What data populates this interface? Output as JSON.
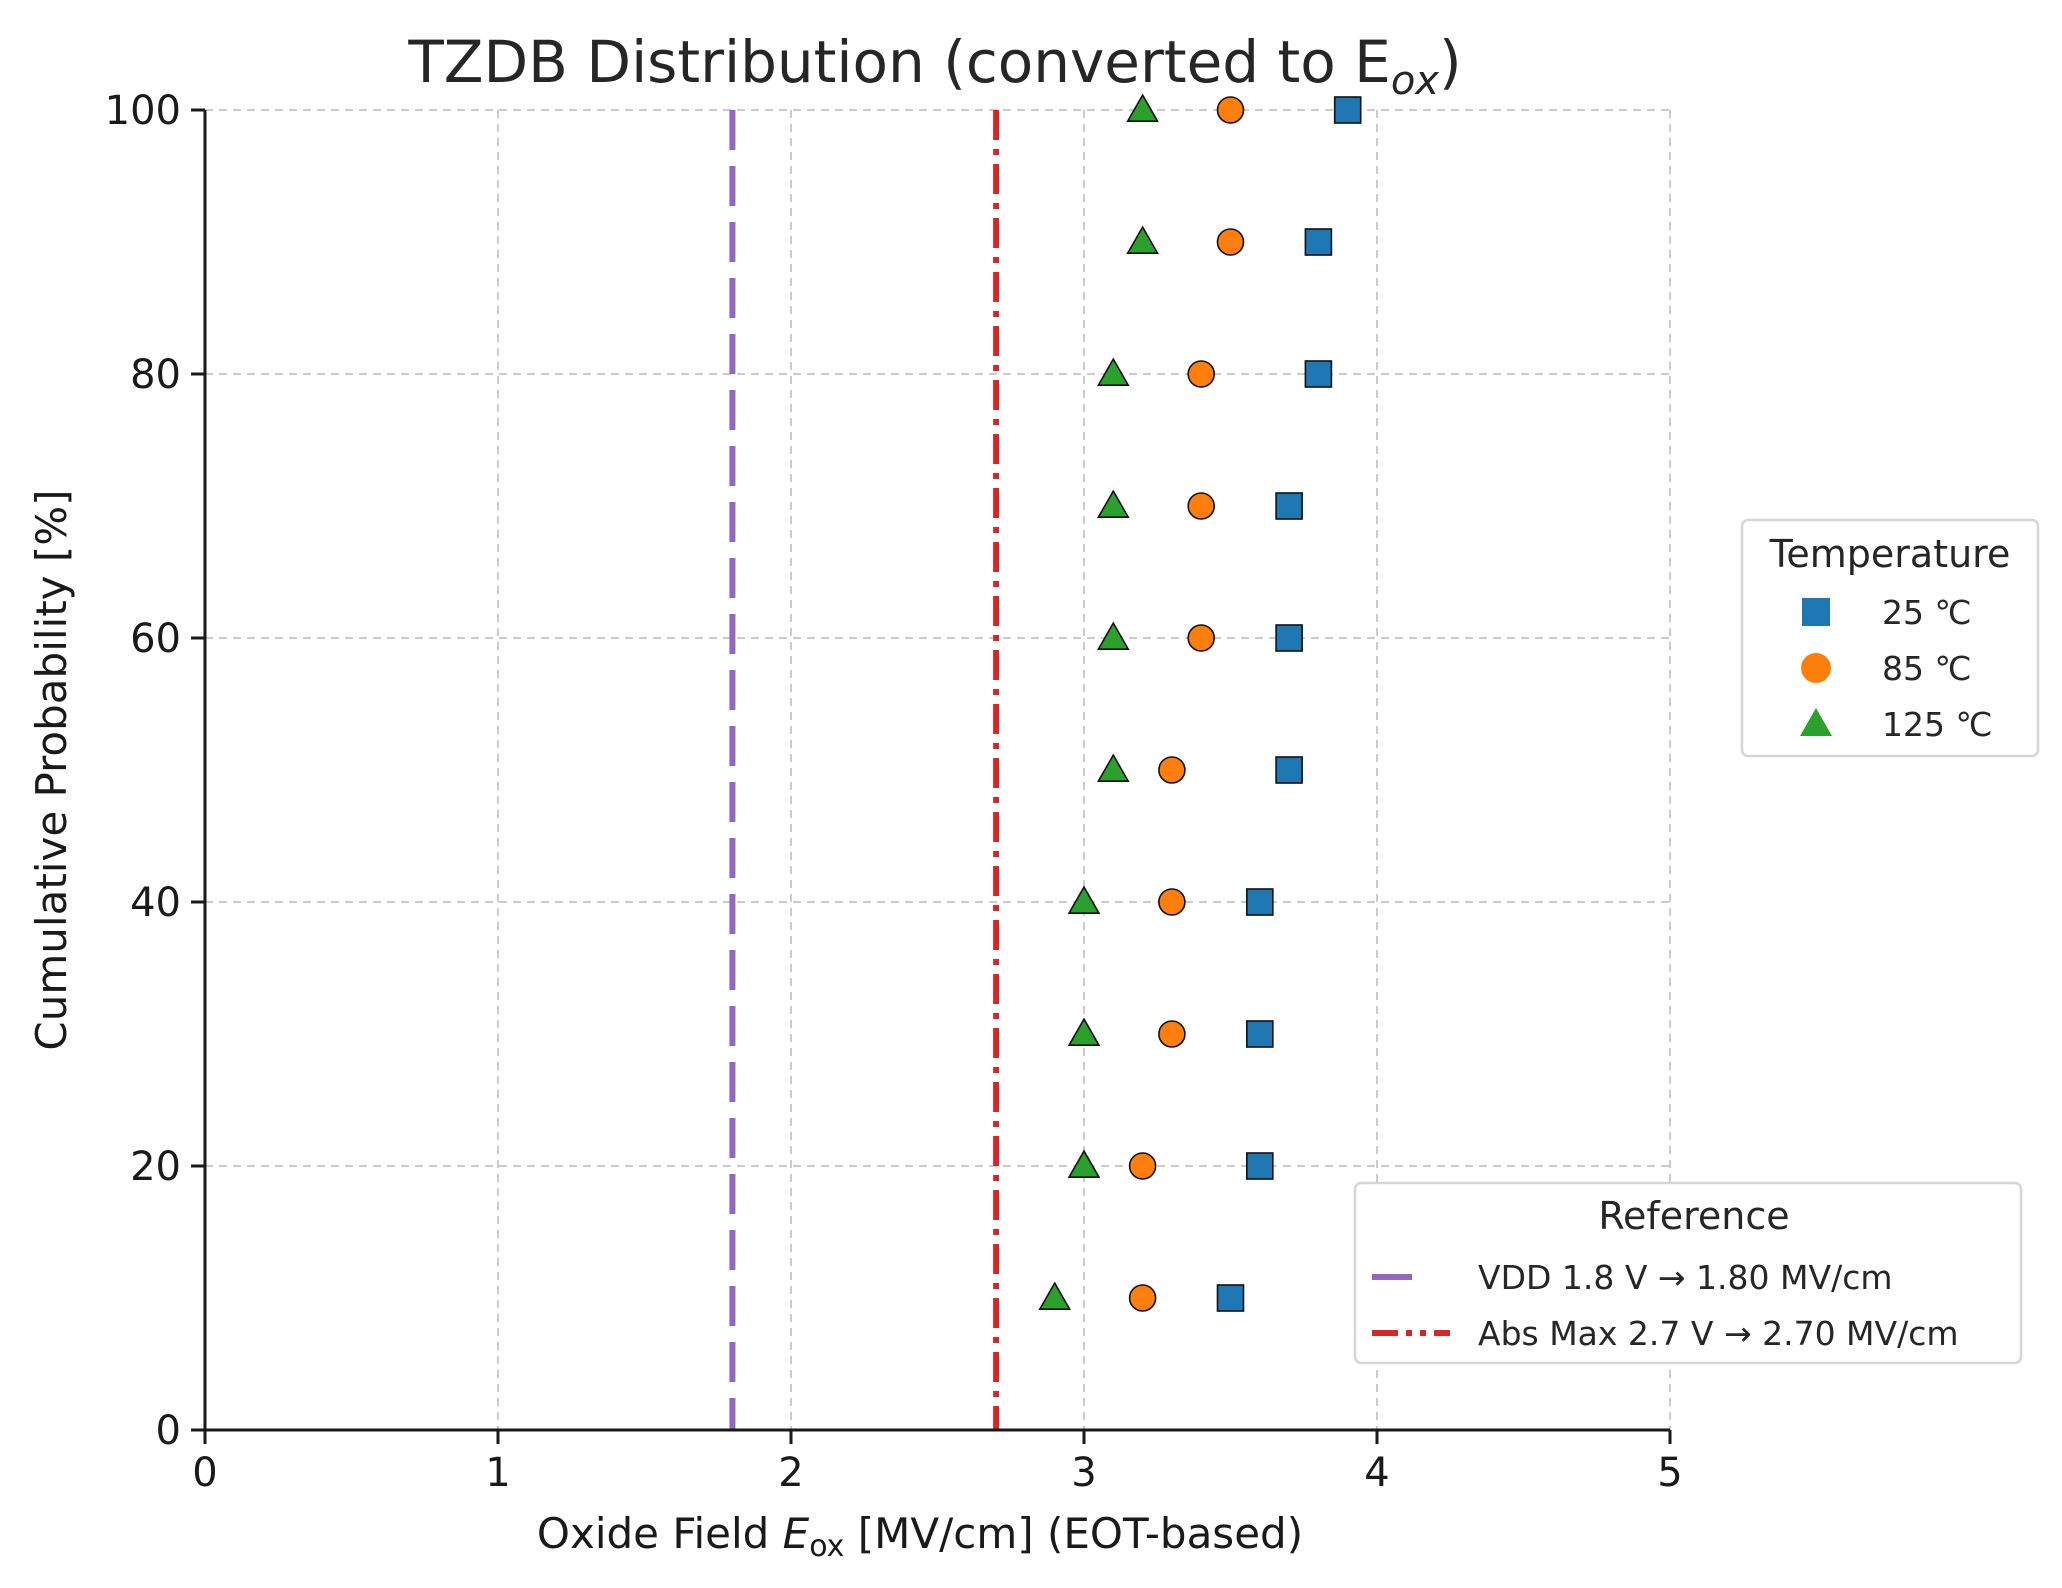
{
  "chart_data": {
    "type": "scatter",
    "title": "TZDB Distribution (converted to E",
    "title_sub": "ox",
    "title_close": ")",
    "xlabel_pre": "Oxide Field ",
    "xlabel_var": "E",
    "xlabel_sub": "ox",
    "xlabel_post": " [MV/cm] (EOT-based)",
    "ylabel": "Cumulative Probability [%]",
    "xlim": [
      0,
      5
    ],
    "ylim": [
      0,
      100
    ],
    "xticks": [
      "0",
      "1",
      "2",
      "3",
      "4",
      "5"
    ],
    "yticks": [
      "0",
      "20",
      "40",
      "60",
      "80",
      "100"
    ],
    "grid": true,
    "y": [
      10,
      20,
      30,
      40,
      50,
      60,
      70,
      80,
      90,
      100
    ],
    "series": [
      {
        "name": "25 ℃",
        "marker": "square",
        "color": "#1f77b4",
        "x": [
          3.5,
          3.6,
          3.6,
          3.6,
          3.7,
          3.7,
          3.7,
          3.8,
          3.8,
          3.9
        ]
      },
      {
        "name": "85 ℃",
        "marker": "circle",
        "color": "#ff7f0e",
        "x": [
          3.2,
          3.2,
          3.3,
          3.3,
          3.3,
          3.4,
          3.4,
          3.4,
          3.5,
          3.5
        ]
      },
      {
        "name": "125 ℃",
        "marker": "triangle",
        "color": "#2ca02c",
        "x": [
          2.9,
          3.0,
          3.0,
          3.0,
          3.1,
          3.1,
          3.1,
          3.1,
          3.2,
          3.2
        ]
      }
    ],
    "reference_lines": [
      {
        "name": "VDD 1.8 V → 1.80 MV/cm",
        "x": 1.8,
        "style": "dashed",
        "color": "#9467bd"
      },
      {
        "name": "Abs Max 2.7 V → 2.70 MV/cm",
        "x": 2.7,
        "style": "dashdot",
        "color": "#d62728"
      }
    ],
    "legend_temperature": {
      "title": "Temperature",
      "placement": "right"
    },
    "legend_reference": {
      "title": "Reference",
      "placement": "lower-right"
    }
  }
}
